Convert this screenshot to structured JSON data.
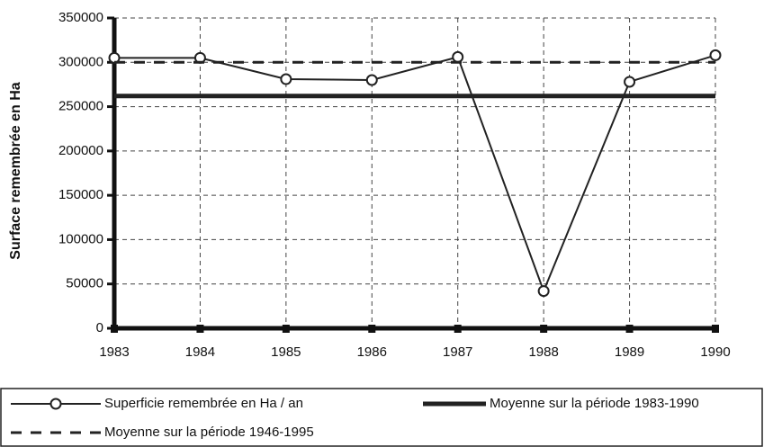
{
  "chart_data": {
    "type": "line",
    "y_label": "Surface remembrée en Ha",
    "categories": [
      "1983",
      "1984",
      "1985",
      "1986",
      "1987",
      "1988",
      "1989",
      "1990"
    ],
    "series": [
      {
        "name": "Superficie remembrée en Ha / an",
        "color": "#222",
        "style": "marker-line",
        "values": [
          305000,
          305000,
          281000,
          280000,
          306000,
          42000,
          278000,
          308000
        ]
      },
      {
        "name": "Moyenne sur la période 1983-1990",
        "color": "#222",
        "style": "solid",
        "values": [
          262000,
          262000,
          262000,
          262000,
          262000,
          262000,
          262000,
          262000
        ]
      },
      {
        "name": "Moyenne sur la période 1946-1995",
        "color": "#222",
        "style": "dashed",
        "values": [
          300000,
          300000,
          300000,
          300000,
          300000,
          300000,
          300000,
          300000
        ]
      }
    ],
    "ylim": [
      0,
      350000
    ],
    "yticks": [
      0,
      50000,
      100000,
      150000,
      200000,
      250000,
      300000,
      350000
    ],
    "grid": true
  }
}
